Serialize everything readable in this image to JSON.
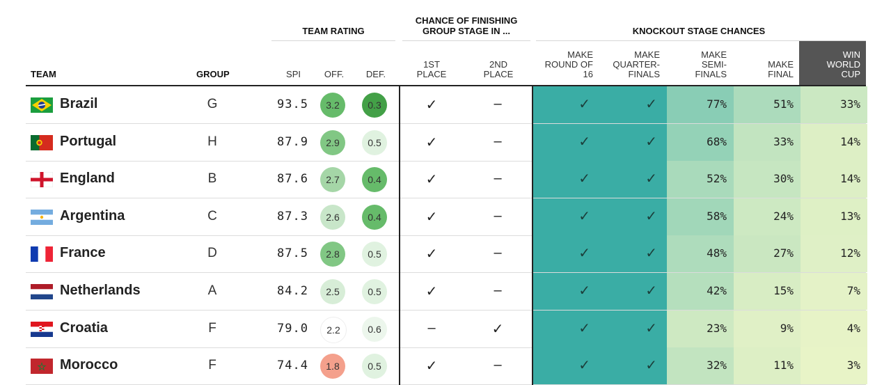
{
  "headers": {
    "team": "TEAM",
    "group": "GROUP",
    "team_rating": "TEAM RATING",
    "chance_group_line1": "CHANCE OF FINISHING",
    "chance_group_line2": "GROUP STAGE IN ...",
    "knockout": "KNOCKOUT STAGE CHANCES",
    "spi": "SPI",
    "off": "OFF.",
    "def": "DEF.",
    "first_place_1": "1ST",
    "first_place_2": "PLACE",
    "second_place_1": "2ND",
    "second_place_2": "PLACE",
    "r16_1": "MAKE",
    "r16_2": "ROUND OF",
    "r16_3": "16",
    "qf_1": "MAKE",
    "qf_2": "QUARTER-",
    "qf_3": "FINALS",
    "sf_1": "MAKE",
    "sf_2": "SEMI-",
    "sf_3": "FINALS",
    "final_1": "MAKE",
    "final_2": "FINAL",
    "win_1": "WIN",
    "win_2": "WORLD",
    "win_3": "CUP"
  },
  "symbols": {
    "check": "✓",
    "dash": "–"
  },
  "colors": {
    "knockout_full": "#3aada5",
    "win_header_bg": "#555555",
    "off_high": "#7fc77f",
    "def_low": "#4caf50",
    "bad": "#f4a08c"
  },
  "rows": [
    {
      "team": "Brazil",
      "flag": "brazil-flag",
      "group": "G",
      "spi": "93.5",
      "off": "3.2",
      "def": "0.3",
      "first": "✓",
      "second": "–",
      "r16": "✓",
      "qf": "✓",
      "sf": "77%",
      "final": "51%",
      "win": "33%",
      "sf_n": 0.77,
      "final_n": 0.51,
      "win_n": 0.33,
      "off_c": "#66bb6a",
      "def_c": "#43a047"
    },
    {
      "team": "Portugal",
      "flag": "portugal-flag",
      "group": "H",
      "spi": "87.9",
      "off": "2.9",
      "def": "0.5",
      "first": "✓",
      "second": "–",
      "r16": "✓",
      "qf": "✓",
      "sf": "68%",
      "final": "33%",
      "win": "14%",
      "sf_n": 0.68,
      "final_n": 0.33,
      "win_n": 0.14,
      "off_c": "#81c784",
      "def_c": "#e0f2e0"
    },
    {
      "team": "England",
      "flag": "england-flag",
      "group": "B",
      "spi": "87.6",
      "off": "2.7",
      "def": "0.4",
      "first": "✓",
      "second": "–",
      "r16": "✓",
      "qf": "✓",
      "sf": "52%",
      "final": "30%",
      "win": "14%",
      "sf_n": 0.52,
      "final_n": 0.3,
      "win_n": 0.14,
      "off_c": "#a5d6a7",
      "def_c": "#66bb6a"
    },
    {
      "team": "Argentina",
      "flag": "argentina-flag",
      "group": "C",
      "spi": "87.3",
      "off": "2.6",
      "def": "0.4",
      "first": "✓",
      "second": "–",
      "r16": "✓",
      "qf": "✓",
      "sf": "58%",
      "final": "24%",
      "win": "13%",
      "sf_n": 0.58,
      "final_n": 0.24,
      "win_n": 0.13,
      "off_c": "#c8e6c9",
      "def_c": "#66bb6a"
    },
    {
      "team": "France",
      "flag": "france-flag",
      "group": "D",
      "spi": "87.5",
      "off": "2.8",
      "def": "0.5",
      "first": "✓",
      "second": "–",
      "r16": "✓",
      "qf": "✓",
      "sf": "48%",
      "final": "27%",
      "win": "12%",
      "sf_n": 0.48,
      "final_n": 0.27,
      "win_n": 0.12,
      "off_c": "#81c784",
      "def_c": "#e0f2e0"
    },
    {
      "team": "Netherlands",
      "flag": "netherlands-flag",
      "group": "A",
      "spi": "84.2",
      "off": "2.5",
      "def": "0.5",
      "first": "✓",
      "second": "–",
      "r16": "✓",
      "qf": "✓",
      "sf": "42%",
      "final": "15%",
      "win": "7%",
      "sf_n": 0.42,
      "final_n": 0.15,
      "win_n": 0.07,
      "off_c": "#d7edd7",
      "def_c": "#e0f2e0"
    },
    {
      "team": "Croatia",
      "flag": "croatia-flag",
      "group": "F",
      "spi": "79.0",
      "off": "2.2",
      "def": "0.6",
      "first": "–",
      "second": "✓",
      "r16": "✓",
      "qf": "✓",
      "sf": "23%",
      "final": "9%",
      "win": "4%",
      "sf_n": 0.23,
      "final_n": 0.09,
      "win_n": 0.04,
      "off_c": "#ffffff",
      "def_c": "#ecf6ec"
    },
    {
      "team": "Morocco",
      "flag": "morocco-flag",
      "group": "F",
      "spi": "74.4",
      "off": "1.8",
      "def": "0.5",
      "first": "✓",
      "second": "–",
      "r16": "✓",
      "qf": "✓",
      "sf": "32%",
      "final": "11%",
      "win": "3%",
      "sf_n": 0.32,
      "final_n": 0.11,
      "win_n": 0.03,
      "off_c": "#f4a08c",
      "def_c": "#e0f2e0"
    }
  ]
}
